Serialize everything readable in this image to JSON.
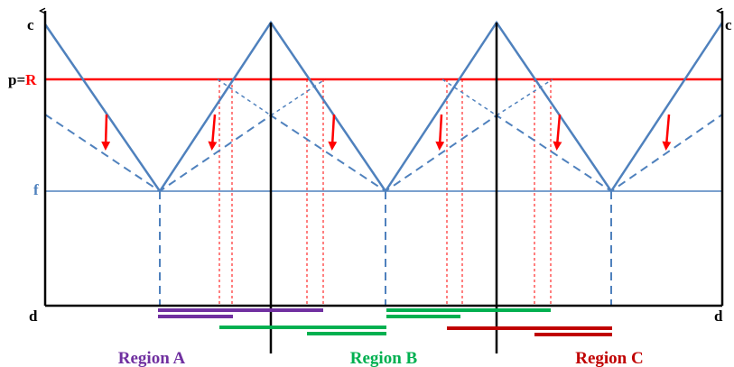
{
  "labels": {
    "c_left": "c",
    "c_right": "c",
    "p_eq": "p=",
    "p_R": "R",
    "f": "f",
    "d_left": "d",
    "d_right": "d"
  },
  "regions": [
    {
      "key": "A",
      "label": "Region A",
      "color": "#7030A0"
    },
    {
      "key": "B",
      "label": "Region B",
      "color": "#00B050"
    },
    {
      "key": "C",
      "label": "Region C",
      "color": "#C00000"
    }
  ],
  "colors": {
    "axis": "#000000",
    "curve": "#4F81BD",
    "R_line": "#FF0000",
    "f_line": "#4F81BD",
    "arrow": "#FF0000",
    "guide": "#FF0000",
    "label_c_d": "#000000",
    "label_R": "#FF0000",
    "label_f": "#4F81BD"
  },
  "icons": {
    "axis_arrow": "arrow-head",
    "shift_arrow": "down-arrow"
  }
}
